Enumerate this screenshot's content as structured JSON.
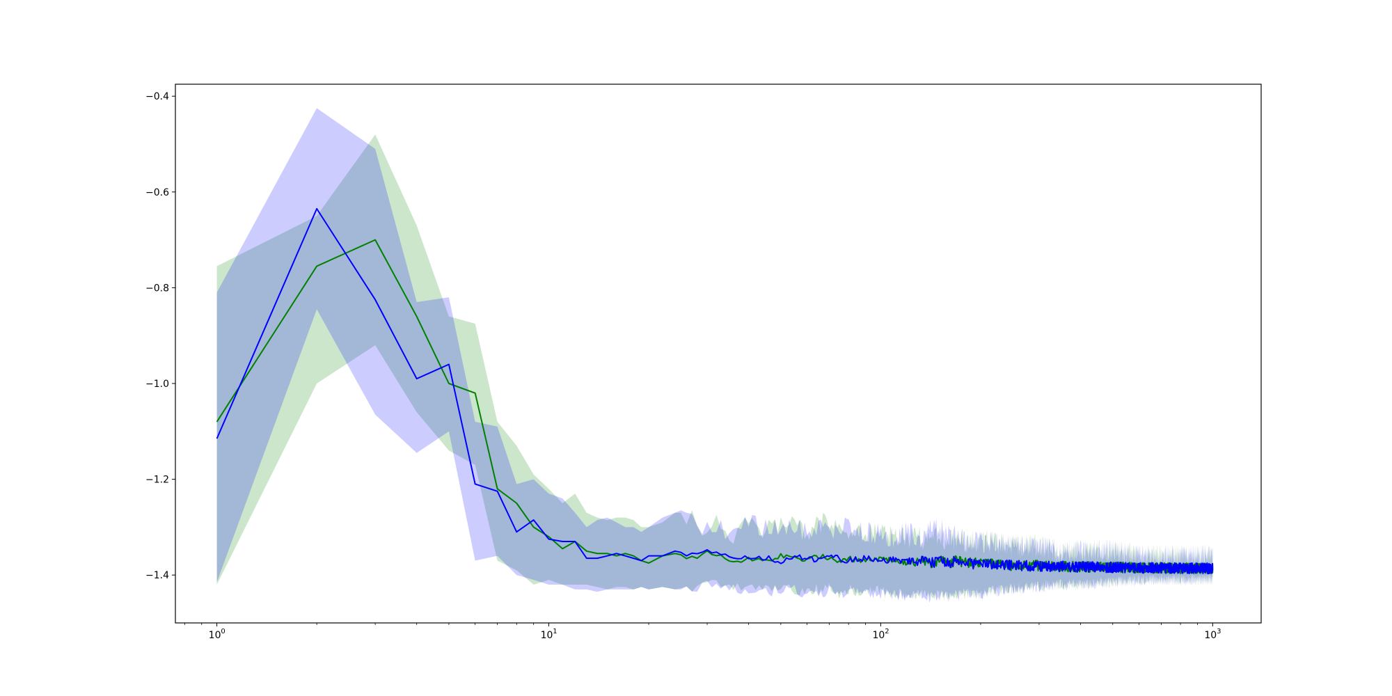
{
  "chart_data": {
    "type": "line",
    "title": "",
    "xlabel": "",
    "ylabel": "",
    "x_scale": "log",
    "xlim": [
      0.75,
      1400
    ],
    "ylim": [
      -1.5,
      -0.375
    ],
    "grid": false,
    "legend": "none",
    "x_ticks": [
      {
        "value": 1,
        "base": "10",
        "exp": "0"
      },
      {
        "value": 10,
        "base": "10",
        "exp": "1"
      },
      {
        "value": 100,
        "base": "10",
        "exp": "2"
      },
      {
        "value": 1000,
        "base": "10",
        "exp": "3"
      }
    ],
    "y_ticks": [
      {
        "value": -1.4,
        "label": "−1.4"
      },
      {
        "value": -1.2,
        "label": "−1.2"
      },
      {
        "value": -1.0,
        "label": "−1.0"
      },
      {
        "value": -0.8,
        "label": "−0.8"
      },
      {
        "value": -0.6,
        "label": "−0.6"
      },
      {
        "value": -0.4,
        "label": "−0.4"
      }
    ],
    "series": [
      {
        "color": "#008000",
        "band_color": "#008000",
        "band_opacity": 0.2,
        "x_head": [
          1,
          2,
          3,
          4,
          5,
          6,
          7,
          8,
          9,
          10,
          11,
          12,
          13,
          14,
          15,
          16,
          17,
          18,
          19,
          20,
          22,
          24,
          26,
          28,
          30,
          33,
          36,
          40,
          45,
          50,
          55,
          60,
          65,
          70,
          75,
          80,
          90,
          100,
          110,
          120,
          130,
          140,
          150,
          160,
          170,
          180,
          200,
          220,
          250,
          300,
          350,
          400,
          500,
          600,
          700,
          800,
          1000
        ],
        "mean_head": [
          -1.08,
          -0.755,
          -0.7,
          -0.86,
          -1.0,
          -1.02,
          -1.22,
          -1.25,
          -1.3,
          -1.32,
          -1.345,
          -1.33,
          -1.35,
          -1.355,
          -1.355,
          -1.36,
          -1.355,
          -1.36,
          -1.37,
          -1.375,
          -1.36,
          -1.355,
          -1.36,
          -1.365,
          -1.355,
          -1.36,
          -1.37,
          -1.365,
          -1.37,
          -1.36,
          -1.365,
          -1.37,
          -1.36,
          -1.365,
          -1.37,
          -1.365,
          -1.37,
          -1.365,
          -1.37,
          -1.375,
          -1.37,
          -1.375,
          -1.37,
          -1.375,
          -1.37,
          -1.375,
          -1.375,
          -1.378,
          -1.38,
          -1.38,
          -1.382,
          -1.383,
          -1.384,
          -1.385,
          -1.385,
          -1.386,
          -1.386
        ],
        "upper_head": [
          -0.755,
          -0.65,
          -0.48,
          -0.67,
          -0.86,
          -0.875,
          -1.08,
          -1.13,
          -1.19,
          -1.22,
          -1.25,
          -1.23,
          -1.27,
          -1.28,
          -1.285,
          -1.28,
          -1.28,
          -1.285,
          -1.3,
          -1.3,
          -1.29,
          -1.27,
          -1.27,
          -1.3,
          -1.29,
          -1.3,
          -1.31,
          -1.3,
          -1.31,
          -1.29,
          -1.3,
          -1.31,
          -1.29,
          -1.3,
          -1.31,
          -1.3,
          -1.31,
          -1.31,
          -1.32,
          -1.32,
          -1.32,
          -1.33,
          -1.31,
          -1.33,
          -1.32,
          -1.33,
          -1.33,
          -1.33,
          -1.34,
          -1.34,
          -1.35,
          -1.35,
          -1.35,
          -1.36,
          -1.36,
          -1.36,
          -1.36
        ],
        "lower_head": [
          -1.42,
          -1.0,
          -0.92,
          -1.06,
          -1.14,
          -1.17,
          -1.37,
          -1.39,
          -1.42,
          -1.41,
          -1.42,
          -1.42,
          -1.42,
          -1.425,
          -1.43,
          -1.425,
          -1.425,
          -1.43,
          -1.425,
          -1.43,
          -1.425,
          -1.43,
          -1.425,
          -1.425,
          -1.42,
          -1.425,
          -1.43,
          -1.425,
          -1.43,
          -1.43,
          -1.43,
          -1.435,
          -1.43,
          -1.43,
          -1.44,
          -1.43,
          -1.435,
          -1.435,
          -1.44,
          -1.44,
          -1.44,
          -1.445,
          -1.44,
          -1.445,
          -1.44,
          -1.44,
          -1.44,
          -1.43,
          -1.43,
          -1.425,
          -1.42,
          -1.42,
          -1.415,
          -1.41,
          -1.41,
          -1.41,
          -1.41
        ]
      },
      {
        "color": "#0000ff",
        "band_color": "#0000ff",
        "band_opacity": 0.2,
        "x_head": [
          1,
          2,
          3,
          4,
          5,
          6,
          7,
          8,
          9,
          10,
          11,
          12,
          13,
          14,
          15,
          16,
          17,
          18,
          19,
          20,
          22,
          24,
          26,
          28,
          30,
          33,
          36,
          40,
          45,
          50,
          55,
          60,
          65,
          70,
          75,
          80,
          90,
          100,
          110,
          120,
          130,
          140,
          150,
          160,
          170,
          180,
          200,
          220,
          250,
          300,
          350,
          400,
          500,
          600,
          700,
          800,
          1000
        ],
        "mean_head": [
          -1.115,
          -0.635,
          -0.825,
          -0.99,
          -0.96,
          -1.21,
          -1.225,
          -1.31,
          -1.285,
          -1.325,
          -1.33,
          -1.33,
          -1.365,
          -1.365,
          -1.36,
          -1.355,
          -1.36,
          -1.365,
          -1.37,
          -1.36,
          -1.36,
          -1.35,
          -1.355,
          -1.36,
          -1.35,
          -1.36,
          -1.365,
          -1.36,
          -1.365,
          -1.37,
          -1.36,
          -1.365,
          -1.37,
          -1.36,
          -1.365,
          -1.37,
          -1.365,
          -1.37,
          -1.368,
          -1.372,
          -1.37,
          -1.375,
          -1.372,
          -1.375,
          -1.37,
          -1.376,
          -1.376,
          -1.378,
          -1.38,
          -1.381,
          -1.382,
          -1.383,
          -1.384,
          -1.385,
          -1.385,
          -1.386,
          -1.386
        ],
        "upper_head": [
          -0.81,
          -0.425,
          -0.51,
          -0.83,
          -0.82,
          -1.08,
          -1.09,
          -1.21,
          -1.2,
          -1.23,
          -1.24,
          -1.27,
          -1.3,
          -1.285,
          -1.28,
          -1.29,
          -1.3,
          -1.3,
          -1.31,
          -1.3,
          -1.28,
          -1.27,
          -1.26,
          -1.3,
          -1.29,
          -1.31,
          -1.3,
          -1.28,
          -1.3,
          -1.3,
          -1.3,
          -1.31,
          -1.29,
          -1.3,
          -1.31,
          -1.3,
          -1.31,
          -1.31,
          -1.32,
          -1.31,
          -1.32,
          -1.31,
          -1.3,
          -1.32,
          -1.32,
          -1.33,
          -1.33,
          -1.33,
          -1.34,
          -1.34,
          -1.35,
          -1.35,
          -1.35,
          -1.36,
          -1.36,
          -1.36,
          -1.36
        ],
        "lower_head": [
          -1.415,
          -0.845,
          -1.065,
          -1.145,
          -1.1,
          -1.37,
          -1.36,
          -1.4,
          -1.41,
          -1.42,
          -1.42,
          -1.43,
          -1.43,
          -1.435,
          -1.43,
          -1.43,
          -1.43,
          -1.43,
          -1.425,
          -1.43,
          -1.425,
          -1.43,
          -1.43,
          -1.425,
          -1.42,
          -1.425,
          -1.43,
          -1.43,
          -1.435,
          -1.43,
          -1.43,
          -1.44,
          -1.435,
          -1.435,
          -1.44,
          -1.435,
          -1.44,
          -1.44,
          -1.44,
          -1.445,
          -1.44,
          -1.445,
          -1.445,
          -1.445,
          -1.44,
          -1.44,
          -1.44,
          -1.435,
          -1.43,
          -1.425,
          -1.42,
          -1.42,
          -1.415,
          -1.41,
          -1.41,
          -1.41,
          -1.41
        ]
      }
    ]
  }
}
